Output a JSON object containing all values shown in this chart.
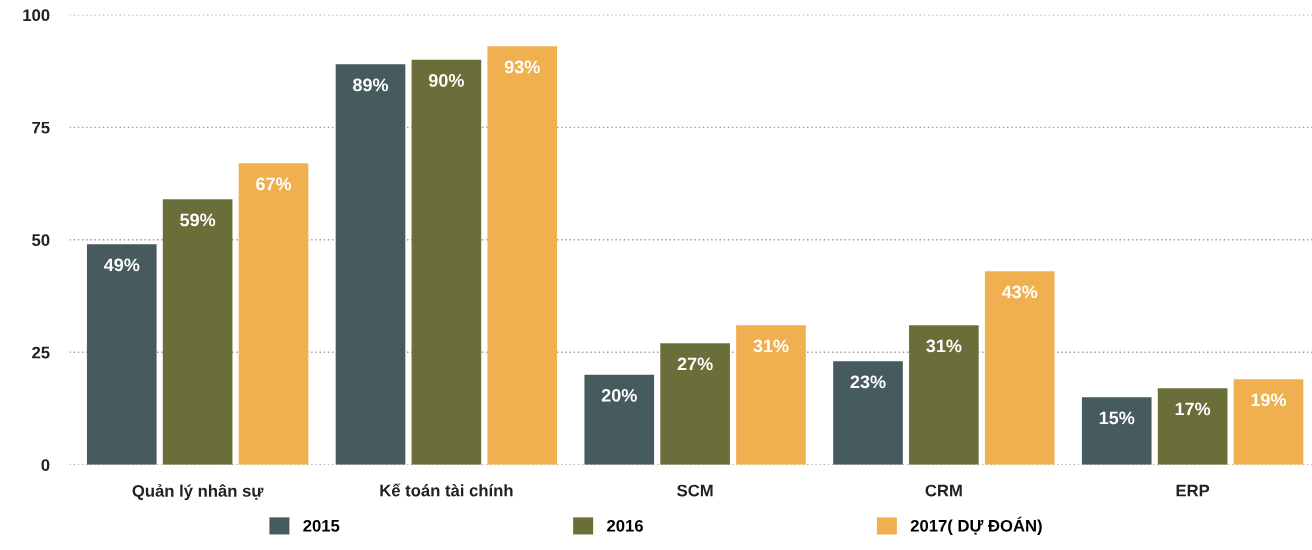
{
  "chart_data": {
    "type": "bar",
    "categories": [
      "Quản lý nhân sự",
      "Kế toán tài chính",
      "SCM",
      "CRM",
      "ERP"
    ],
    "series": [
      {
        "name": "2015",
        "color": "#475a5e",
        "values": [
          49,
          89,
          20,
          23,
          15
        ],
        "value_labels": [
          "49%",
          "89%",
          "20%",
          "23%",
          "15%"
        ]
      },
      {
        "name": "2016",
        "color": "#6a6e38",
        "values": [
          59,
          90,
          27,
          31,
          17
        ],
        "value_labels": [
          "59%",
          "90%",
          "27%",
          "31%",
          "17%"
        ]
      },
      {
        "name": "2017( DỰ ĐOÁN)",
        "color": "#f0b050",
        "values": [
          67,
          93,
          31,
          43,
          19
        ],
        "value_labels": [
          "67%",
          "93%",
          "31%",
          "43%",
          "19%"
        ]
      }
    ],
    "ylim": [
      0,
      100
    ],
    "yticks": [
      0,
      25,
      50,
      75,
      100
    ],
    "grid": "y",
    "legend": "bottom"
  }
}
